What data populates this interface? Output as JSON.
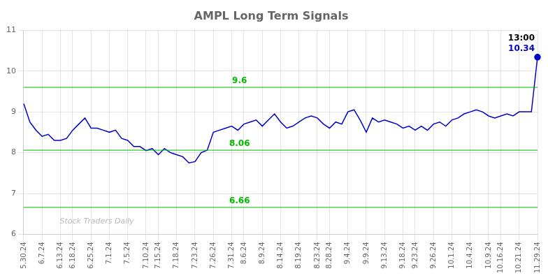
{
  "chart_data": {
    "type": "line",
    "title": "AMPL Long Term Signals",
    "categories": [
      "5.30.24",
      null,
      null,
      "6.7.24",
      null,
      null,
      "6.13.24",
      null,
      "6.18.24",
      null,
      null,
      "6.25.24",
      null,
      null,
      "7.1.24",
      null,
      null,
      "7.5.24",
      null,
      null,
      "7.10.24",
      null,
      "7.15.24",
      null,
      null,
      "7.18.24",
      null,
      null,
      "7.23.24",
      null,
      null,
      "7.26.24",
      null,
      null,
      "7.31.24",
      null,
      "8.6.24",
      null,
      null,
      "8.9.24",
      null,
      null,
      "8.14.24",
      null,
      null,
      "8.19.24",
      null,
      null,
      "8.23.24",
      null,
      "8.28.24",
      null,
      null,
      "9.4.24",
      null,
      null,
      "9.9.24",
      null,
      null,
      "9.13.24",
      null,
      null,
      "9.18.24",
      null,
      "9.23.24",
      null,
      null,
      "9.26.24",
      null,
      null,
      "10.1.24",
      null,
      null,
      "10.4.24",
      null,
      null,
      "10.9.24",
      null,
      "10.16.24",
      null,
      null,
      "10.21.24",
      null,
      null,
      "11.29.24"
    ],
    "values": [
      9.2,
      8.75,
      8.55,
      8.4,
      8.45,
      8.3,
      8.3,
      8.35,
      8.55,
      8.7,
      8.85,
      8.6,
      8.6,
      8.55,
      8.5,
      8.55,
      8.35,
      8.3,
      8.15,
      8.15,
      8.05,
      8.1,
      7.95,
      8.1,
      8.0,
      7.95,
      7.9,
      7.75,
      7.78,
      8.0,
      8.06,
      8.5,
      8.55,
      8.6,
      8.65,
      8.55,
      8.7,
      8.75,
      8.8,
      8.65,
      8.8,
      8.95,
      8.75,
      8.6,
      8.65,
      8.75,
      8.85,
      8.9,
      8.85,
      8.7,
      8.6,
      8.75,
      8.7,
      9.0,
      9.05,
      8.8,
      8.5,
      8.85,
      8.75,
      8.8,
      8.75,
      8.7,
      8.6,
      8.65,
      8.55,
      8.65,
      8.55,
      8.7,
      8.75,
      8.65,
      8.8,
      8.85,
      8.95,
      9.0,
      9.05,
      9.0,
      8.9,
      8.85,
      8.9,
      8.95,
      8.9,
      9.0,
      9.0,
      9.0,
      10.34
    ],
    "color": "#0000cc",
    "hlines": [
      {
        "y": 9.6,
        "label": "9.6"
      },
      {
        "y": 8.06,
        "label": "8.06"
      },
      {
        "y": 6.66,
        "label": "6.66"
      }
    ],
    "hline_color": "#00bb00",
    "annotations": [
      {
        "text": "13:00",
        "color": "#000000"
      },
      {
        "text": "10.34",
        "color": "#0000cc"
      }
    ],
    "watermark": {
      "text": "Stock Traders Daily",
      "color": "#bbbbbb"
    },
    "ylim": [
      6.0,
      11.0
    ],
    "yticks": [
      6,
      7,
      8,
      9,
      10,
      11
    ],
    "grid": true,
    "legend": false
  }
}
